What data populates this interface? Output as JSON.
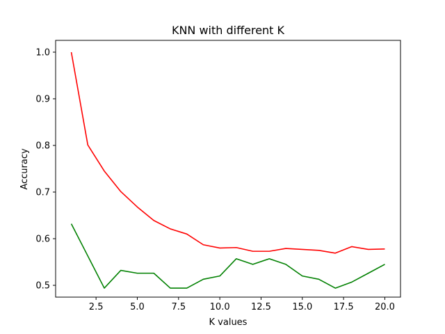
{
  "chart_data": {
    "type": "line",
    "title": "KNN with different K",
    "xlabel": "K values",
    "ylabel": "Accuracy",
    "xlim": [
      0.05,
      20.95
    ],
    "ylim": [
      0.4747,
      1.0253
    ],
    "xticks": [
      2.5,
      5.0,
      7.5,
      10.0,
      12.5,
      15.0,
      17.5,
      20.0
    ],
    "xtick_labels": [
      "2.5",
      "5.0",
      "7.5",
      "10.0",
      "12.5",
      "15.0",
      "17.5",
      "20.0"
    ],
    "yticks": [
      0.5,
      0.6,
      0.7,
      0.8,
      0.9,
      1.0
    ],
    "ytick_labels": [
      "0.5",
      "0.6",
      "0.7",
      "0.8",
      "0.9",
      "1.0"
    ],
    "grid": false,
    "x": [
      1,
      2,
      3,
      4,
      5,
      6,
      7,
      8,
      9,
      10,
      11,
      12,
      13,
      14,
      15,
      16,
      17,
      18,
      19,
      20
    ],
    "series": [
      {
        "color": "#ff0000",
        "values": [
          1.0,
          0.801,
          0.745,
          0.701,
          0.668,
          0.639,
          0.621,
          0.61,
          0.587,
          0.58,
          0.581,
          0.573,
          0.573,
          0.579,
          0.577,
          0.575,
          0.569,
          0.583,
          0.577,
          0.578
        ]
      },
      {
        "color": "#008000",
        "values": [
          0.632,
          0.563,
          0.494,
          0.532,
          0.526,
          0.526,
          0.494,
          0.494,
          0.513,
          0.52,
          0.557,
          0.545,
          0.557,
          0.545,
          0.52,
          0.513,
          0.494,
          0.507,
          0.526,
          0.545
        ]
      }
    ]
  }
}
